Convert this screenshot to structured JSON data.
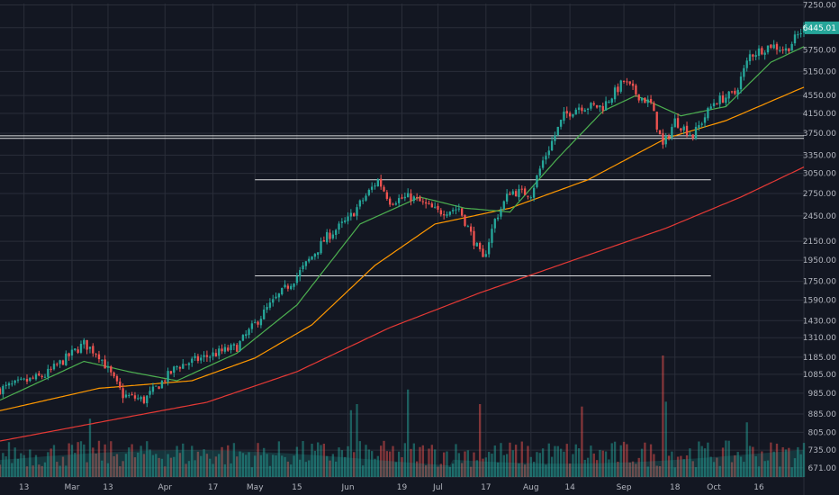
{
  "chart_data": {
    "type": "candlestick",
    "scale": "log",
    "grid": true,
    "ylim": [
      640,
      7300
    ],
    "y_ticks": [
      671,
      735,
      805,
      885,
      985,
      1085,
      1185,
      1310,
      1430,
      1590,
      1750,
      1950,
      2150,
      2450,
      2750,
      3050,
      3350,
      3750,
      4150,
      4550,
      5150,
      5750,
      6450,
      7250
    ],
    "y_tick_labels": [
      "671.00",
      "735.00",
      "805.00",
      "885.00",
      "985.00",
      "1085.00",
      "1185.00",
      "1310.00",
      "1430.00",
      "1590.00",
      "1750.00",
      "1950.00",
      "2150.00",
      "2450.00",
      "2750.00",
      "3050.00",
      "3350.00",
      "3750.00",
      "4150.00",
      "4550.00",
      "5150.00",
      "5750.00",
      "",
      "7250.00"
    ],
    "x_ticks": [
      {
        "label": "13",
        "date": "2017-02-13"
      },
      {
        "label": "Mar",
        "date": "2017-03-01"
      },
      {
        "label": "13",
        "date": "2017-03-13"
      },
      {
        "label": "Apr",
        "date": "2017-04-01"
      },
      {
        "label": "17",
        "date": "2017-04-17"
      },
      {
        "label": "May",
        "date": "2017-05-01"
      },
      {
        "label": "15",
        "date": "2017-05-15"
      },
      {
        "label": "Jun",
        "date": "2017-06-01"
      },
      {
        "label": "19",
        "date": "2017-06-19"
      },
      {
        "label": "Jul",
        "date": "2017-07-01"
      },
      {
        "label": "17",
        "date": "2017-07-17"
      },
      {
        "label": "Aug",
        "date": "2017-08-01"
      },
      {
        "label": "14",
        "date": "2017-08-14"
      },
      {
        "label": "Sep",
        "date": "2017-09-01"
      },
      {
        "label": "18",
        "date": "2017-09-18"
      },
      {
        "label": "Oct",
        "date": "2017-10-01"
      },
      {
        "label": "16",
        "date": "2017-10-16"
      }
    ],
    "x_range": [
      "2017-02-05",
      "2017-10-31"
    ],
    "last_price": {
      "value": 6445.01,
      "label": "6445.01"
    },
    "colors": {
      "up": "#26a69a",
      "down": "#ef5350",
      "sma_short": "#4caf50",
      "sma_mid": "#ff9800",
      "sma_long": "#e53935",
      "levels": "#ffffff",
      "price_label": "#26a69a"
    },
    "horizontal_levels": [
      {
        "value": 3650,
        "from": "2017-02-05",
        "to": "2017-10-31"
      },
      {
        "value": 3700,
        "from": "2017-02-05",
        "to": "2017-10-31"
      },
      {
        "value": 2950,
        "from": "2017-05-01",
        "to": "2017-09-30"
      },
      {
        "value": 1800,
        "from": "2017-05-01",
        "to": "2017-09-30"
      }
    ],
    "price_anchors": [
      [
        "2017-02-05",
        1005
      ],
      [
        "2017-02-20",
        1080
      ],
      [
        "2017-03-05",
        1270
      ],
      [
        "2017-03-10",
        1200
      ],
      [
        "2017-03-18",
        975
      ],
      [
        "2017-03-25",
        950
      ],
      [
        "2017-04-05",
        1130
      ],
      [
        "2017-04-15",
        1190
      ],
      [
        "2017-04-25",
        1250
      ],
      [
        "2017-05-05",
        1520
      ],
      [
        "2017-05-15",
        1800
      ],
      [
        "2017-05-25",
        2200
      ],
      [
        "2017-06-01",
        2400
      ],
      [
        "2017-06-11",
        2950
      ],
      [
        "2017-06-15",
        2650
      ],
      [
        "2017-06-22",
        2700
      ],
      [
        "2017-07-01",
        2500
      ],
      [
        "2017-07-08",
        2550
      ],
      [
        "2017-07-16",
        1950
      ],
      [
        "2017-07-20",
        2400
      ],
      [
        "2017-07-25",
        2780
      ],
      [
        "2017-08-01",
        2750
      ],
      [
        "2017-08-05",
        3250
      ],
      [
        "2017-08-12",
        4100
      ],
      [
        "2017-08-17",
        4300
      ],
      [
        "2017-08-25",
        4300
      ],
      [
        "2017-09-01",
        4900
      ],
      [
        "2017-09-05",
        4600
      ],
      [
        "2017-09-10",
        4350
      ],
      [
        "2017-09-14",
        3500
      ],
      [
        "2017-09-18",
        4000
      ],
      [
        "2017-09-24",
        3700
      ],
      [
        "2017-10-01",
        4400
      ],
      [
        "2017-10-08",
        4600
      ],
      [
        "2017-10-13",
        5600
      ],
      [
        "2017-10-20",
        5900
      ],
      [
        "2017-10-25",
        5750
      ],
      [
        "2017-10-31",
        6445
      ]
    ],
    "sma_short_anchors": [
      [
        "2017-02-05",
        950
      ],
      [
        "2017-03-05",
        1160
      ],
      [
        "2017-03-20",
        1100
      ],
      [
        "2017-04-05",
        1050
      ],
      [
        "2017-04-25",
        1210
      ],
      [
        "2017-05-15",
        1550
      ],
      [
        "2017-06-05",
        2350
      ],
      [
        "2017-06-25",
        2700
      ],
      [
        "2017-07-10",
        2550
      ],
      [
        "2017-07-25",
        2500
      ],
      [
        "2017-08-10",
        3300
      ],
      [
        "2017-08-25",
        4200
      ],
      [
        "2017-09-05",
        4550
      ],
      [
        "2017-09-20",
        4100
      ],
      [
        "2017-10-05",
        4300
      ],
      [
        "2017-10-20",
        5400
      ],
      [
        "2017-10-31",
        5850
      ]
    ],
    "sma_mid_anchors": [
      [
        "2017-02-05",
        900
      ],
      [
        "2017-03-10",
        1010
      ],
      [
        "2017-04-10",
        1050
      ],
      [
        "2017-05-01",
        1180
      ],
      [
        "2017-05-20",
        1400
      ],
      [
        "2017-06-10",
        1900
      ],
      [
        "2017-06-30",
        2350
      ],
      [
        "2017-07-25",
        2550
      ],
      [
        "2017-08-20",
        2950
      ],
      [
        "2017-09-15",
        3650
      ],
      [
        "2017-10-05",
        4000
      ],
      [
        "2017-10-31",
        4750
      ]
    ],
    "sma_long_anchors": [
      [
        "2017-02-05",
        770
      ],
      [
        "2017-03-15",
        860
      ],
      [
        "2017-04-15",
        940
      ],
      [
        "2017-05-15",
        1100
      ],
      [
        "2017-06-15",
        1380
      ],
      [
        "2017-07-15",
        1650
      ],
      [
        "2017-08-15",
        1950
      ],
      [
        "2017-09-15",
        2300
      ],
      [
        "2017-10-10",
        2700
      ],
      [
        "2017-10-31",
        3150
      ]
    ],
    "volume_spikes": [
      {
        "date": "2017-06-02",
        "value": 0.55
      },
      {
        "date": "2017-06-04",
        "value": 0.6
      },
      {
        "date": "2017-06-21",
        "value": 0.72
      },
      {
        "date": "2017-07-15",
        "value": 0.6
      },
      {
        "date": "2017-08-18",
        "value": 0.58
      },
      {
        "date": "2017-09-14",
        "value": 1.0
      },
      {
        "date": "2017-09-15",
        "value": 0.62
      },
      {
        "date": "2017-03-07",
        "value": 0.48
      },
      {
        "date": "2017-10-12",
        "value": 0.45
      }
    ]
  }
}
